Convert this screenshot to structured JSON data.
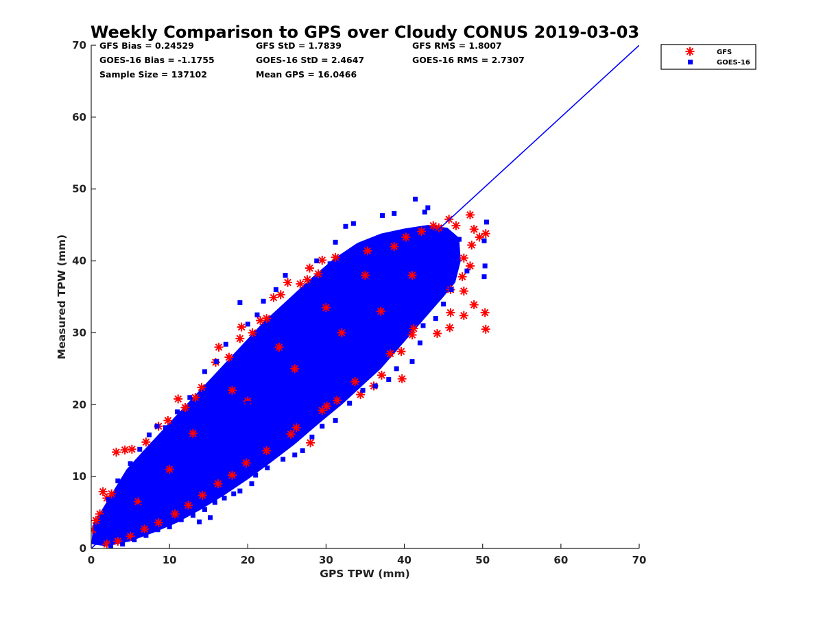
{
  "chart_data": {
    "type": "scatter",
    "title": "Weekly Comparison to GPS over Cloudy CONUS 2019-03-03",
    "xlabel": "GPS TPW (mm)",
    "ylabel": "Measured TPW (mm)",
    "xlim": [
      0,
      70
    ],
    "ylim": [
      0,
      70
    ],
    "xticks": [
      "0",
      "10",
      "20",
      "30",
      "40",
      "50",
      "60",
      "70"
    ],
    "yticks": [
      "0",
      "10",
      "20",
      "30",
      "40",
      "50",
      "60",
      "70"
    ],
    "grid": false,
    "legend_position": "top-right, outside axes",
    "stats": [
      [
        "GFS Bias = 0.24529",
        "GFS StD = 1.7839",
        "GFS RMS = 1.8007"
      ],
      [
        "GOES-16 Bias = -1.1755",
        "GOES-16 StD = 2.4647",
        "GOES-16 RMS = 2.7307"
      ],
      [
        "Sample Size = 137102",
        "Mean GPS = 16.0466"
      ]
    ],
    "reference_line": {
      "x": [
        0,
        70
      ],
      "y": [
        0,
        70
      ],
      "color": "#0000ff"
    },
    "series": [
      {
        "name": "GFS",
        "marker": "asterisk",
        "color": "#ff0000",
        "points": [
          [
            0.2,
            2.6
          ],
          [
            0.6,
            3.9
          ],
          [
            1.1,
            4.8
          ],
          [
            1.5,
            7.9
          ],
          [
            2.0,
            7.0
          ],
          [
            2.6,
            7.6
          ],
          [
            3.2,
            13.4
          ],
          [
            4.3,
            13.7
          ],
          [
            5.2,
            13.8
          ],
          [
            7.0,
            14.8
          ],
          [
            8.6,
            17.0
          ],
          [
            9.8,
            17.8
          ],
          [
            11.1,
            20.8
          ],
          [
            12.0,
            19.6
          ],
          [
            13.3,
            21.0
          ],
          [
            14.1,
            22.4
          ],
          [
            15.9,
            25.9
          ],
          [
            16.3,
            28.0
          ],
          [
            17.6,
            26.6
          ],
          [
            19.0,
            29.2
          ],
          [
            19.2,
            30.8
          ],
          [
            20.6,
            30.0
          ],
          [
            21.6,
            31.7
          ],
          [
            22.4,
            32.0
          ],
          [
            23.3,
            34.9
          ],
          [
            24.2,
            35.3
          ],
          [
            25.1,
            37.0
          ],
          [
            26.7,
            36.8
          ],
          [
            27.6,
            37.4
          ],
          [
            27.9,
            39.0
          ],
          [
            29.0,
            38.2
          ],
          [
            29.5,
            40.1
          ],
          [
            31.2,
            40.5
          ],
          [
            35.3,
            41.4
          ],
          [
            38.7,
            42.0
          ],
          [
            40.2,
            43.3
          ],
          [
            42.2,
            44.1
          ],
          [
            43.7,
            44.9
          ],
          [
            44.4,
            44.6
          ],
          [
            45.7,
            45.8
          ],
          [
            46.6,
            44.9
          ],
          [
            48.4,
            46.4
          ],
          [
            48.9,
            44.4
          ],
          [
            50.4,
            43.8
          ],
          [
            49.6,
            43.3
          ],
          [
            48.6,
            42.2
          ],
          [
            47.6,
            40.4
          ],
          [
            48.4,
            39.3
          ],
          [
            47.4,
            37.8
          ],
          [
            45.9,
            36.0
          ],
          [
            47.6,
            35.8
          ],
          [
            48.9,
            33.9
          ],
          [
            45.9,
            32.8
          ],
          [
            47.6,
            32.4
          ],
          [
            50.3,
            32.8
          ],
          [
            50.4,
            30.5
          ],
          [
            45.8,
            30.7
          ],
          [
            44.2,
            29.9
          ],
          [
            41.2,
            30.6
          ],
          [
            41.0,
            29.7
          ],
          [
            39.6,
            27.4
          ],
          [
            38.2,
            27.1
          ],
          [
            39.7,
            23.6
          ],
          [
            37.1,
            24.1
          ],
          [
            36.1,
            22.6
          ],
          [
            34.4,
            21.4
          ],
          [
            33.7,
            23.2
          ],
          [
            31.4,
            20.6
          ],
          [
            30.1,
            19.8
          ],
          [
            29.5,
            19.2
          ],
          [
            28.0,
            14.7
          ],
          [
            26.2,
            16.8
          ],
          [
            25.5,
            15.9
          ],
          [
            22.4,
            13.6
          ],
          [
            19.8,
            11.9
          ],
          [
            18.0,
            10.2
          ],
          [
            16.2,
            9.0
          ],
          [
            14.2,
            7.4
          ],
          [
            12.4,
            6.0
          ],
          [
            10.7,
            4.8
          ],
          [
            8.6,
            3.6
          ],
          [
            6.8,
            2.7
          ],
          [
            5.0,
            1.7
          ],
          [
            3.4,
            1.0
          ],
          [
            2.0,
            0.6
          ],
          [
            13.0,
            16.0
          ],
          [
            18.0,
            22.0
          ],
          [
            24.0,
            28.0
          ],
          [
            30.0,
            33.5
          ],
          [
            35.0,
            38.0
          ],
          [
            20.0,
            20.5
          ],
          [
            26.0,
            25.0
          ],
          [
            32.0,
            30.0
          ],
          [
            37.0,
            33.0
          ],
          [
            41.0,
            38.0
          ],
          [
            10.0,
            11.0
          ],
          [
            6.0,
            6.5
          ]
        ]
      },
      {
        "name": "GOES-16",
        "marker": "square",
        "color": "#0000ff",
        "points": [
          [
            1.0,
            1.2
          ],
          [
            2.5,
            2.8
          ],
          [
            4.0,
            4.5
          ],
          [
            5.0,
            5.4
          ],
          [
            6.5,
            7.0
          ],
          [
            8.0,
            8.4
          ],
          [
            9.5,
            9.8
          ],
          [
            11.0,
            11.5
          ],
          [
            12.5,
            13.0
          ],
          [
            14.0,
            14.4
          ],
          [
            15.5,
            16.0
          ],
          [
            17.0,
            17.5
          ],
          [
            18.5,
            19.0
          ],
          [
            20.0,
            20.2
          ],
          [
            21.5,
            21.7
          ],
          [
            23.0,
            23.2
          ],
          [
            24.5,
            24.6
          ],
          [
            26.0,
            26.1
          ],
          [
            27.5,
            27.6
          ],
          [
            29.0,
            29.0
          ],
          [
            30.5,
            30.5
          ],
          [
            32.0,
            32.0
          ],
          [
            33.5,
            33.4
          ],
          [
            35.0,
            34.8
          ],
          [
            36.5,
            36.0
          ],
          [
            38.0,
            37.3
          ],
          [
            39.5,
            38.5
          ],
          [
            41.0,
            39.8
          ],
          [
            42.5,
            40.6
          ],
          [
            44.0,
            41.5
          ],
          [
            45.5,
            42.0
          ],
          [
            47.0,
            43.0
          ],
          [
            41.4,
            48.6
          ],
          [
            42.6,
            46.8
          ],
          [
            43.0,
            47.4
          ],
          [
            38.7,
            46.6
          ],
          [
            37.2,
            46.3
          ],
          [
            33.5,
            45.2
          ],
          [
            32.5,
            44.8
          ],
          [
            31.2,
            42.6
          ],
          [
            30.5,
            39.6
          ],
          [
            28.8,
            40.0
          ],
          [
            24.8,
            38.0
          ],
          [
            23.6,
            36.0
          ],
          [
            22.0,
            34.4
          ],
          [
            21.2,
            32.5
          ],
          [
            20.0,
            31.2
          ],
          [
            19.0,
            34.2
          ],
          [
            17.2,
            28.4
          ],
          [
            16.0,
            26.0
          ],
          [
            14.5,
            24.6
          ],
          [
            12.6,
            21.0
          ],
          [
            11.0,
            19.0
          ],
          [
            9.5,
            16.8
          ],
          [
            8.4,
            17.0
          ],
          [
            7.4,
            15.8
          ],
          [
            6.2,
            13.8
          ],
          [
            5.0,
            11.8
          ],
          [
            3.4,
            9.4
          ],
          [
            2.2,
            6.8
          ],
          [
            1.4,
            4.4
          ],
          [
            0.6,
            2.8
          ],
          [
            50.5,
            45.4
          ],
          [
            50.2,
            42.8
          ],
          [
            50.3,
            39.3
          ],
          [
            50.2,
            37.8
          ],
          [
            48.0,
            38.6
          ],
          [
            46.0,
            36.0
          ],
          [
            45.0,
            34.0
          ],
          [
            44.0,
            32.0
          ],
          [
            42.4,
            31.0
          ],
          [
            42.0,
            28.6
          ],
          [
            41.0,
            26.0
          ],
          [
            39.0,
            25.0
          ],
          [
            38.0,
            23.5
          ],
          [
            36.3,
            22.6
          ],
          [
            34.7,
            22.0
          ],
          [
            33.0,
            20.2
          ],
          [
            31.2,
            17.8
          ],
          [
            29.5,
            17.0
          ],
          [
            28.2,
            15.5
          ],
          [
            27.0,
            13.6
          ],
          [
            26.0,
            13.0
          ],
          [
            24.5,
            12.4
          ],
          [
            22.5,
            11.2
          ],
          [
            21.0,
            10.2
          ],
          [
            20.5,
            9.0
          ],
          [
            19.0,
            8.0
          ],
          [
            18.2,
            7.6
          ],
          [
            17.0,
            7.0
          ],
          [
            15.8,
            6.4
          ],
          [
            14.5,
            5.4
          ],
          [
            13.0,
            4.6
          ],
          [
            11.5,
            4.0
          ],
          [
            10.0,
            3.0
          ],
          [
            8.5,
            2.6
          ],
          [
            7.0,
            1.8
          ],
          [
            5.5,
            1.2
          ],
          [
            4.0,
            0.6
          ],
          [
            2.5,
            0.3
          ],
          [
            13.8,
            3.7
          ],
          [
            15.2,
            4.3
          ]
        ]
      }
    ]
  }
}
